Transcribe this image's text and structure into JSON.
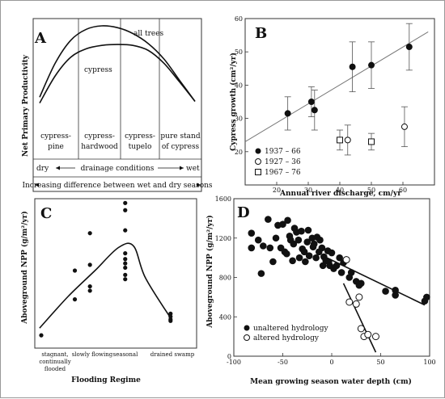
{
  "chart_data": [
    {
      "panel": "A",
      "type": "line",
      "ylabel": "Net Primary Productivity",
      "curves": [
        {
          "name": "all trees",
          "x": [
            0,
            1,
            2,
            3,
            4,
            5,
            6,
            7,
            8,
            9,
            10
          ],
          "y": [
            0.15,
            0.55,
            0.82,
            0.95,
            0.99,
            0.97,
            0.9,
            0.78,
            0.6,
            0.35,
            0.1
          ]
        },
        {
          "name": "cypress",
          "x": [
            0,
            1,
            2,
            3,
            4,
            5,
            6,
            7,
            8,
            9,
            10
          ],
          "y": [
            0.08,
            0.4,
            0.62,
            0.72,
            0.76,
            0.77,
            0.76,
            0.7,
            0.55,
            0.33,
            0.1
          ]
        }
      ],
      "zones": [
        {
          "line1": "cypress-",
          "line2": "pine"
        },
        {
          "line1": "cypress-",
          "line2": "hardwood"
        },
        {
          "line1": "cypress-",
          "line2": "tupelo"
        },
        {
          "line1": "pure stand",
          "line2": "of cypress"
        }
      ],
      "drainage": {
        "left": "dry",
        "mid": "drainage conditions",
        "right": "wet"
      },
      "difference_label": "Increasing difference between wet and dry seasons"
    },
    {
      "panel": "B",
      "type": "scatter",
      "xlabel": "Annual river discharge, cm/yr",
      "ylabel": "Cypress growth (cm²/yr)",
      "xlim": [
        10,
        70
      ],
      "ylim": [
        10,
        60
      ],
      "xticks": [
        20,
        30,
        40,
        50,
        60
      ],
      "yticks": [
        20,
        30,
        40,
        50,
        60
      ],
      "series": [
        {
          "name": "1937 – 66",
          "marker": "filled-circle",
          "x": [
            23.5,
            31,
            32,
            44,
            50,
            62
          ],
          "y": [
            31.5,
            35,
            32.5,
            45.5,
            46,
            51.5
          ],
          "err": [
            5,
            4.5,
            6,
            7.5,
            7,
            7
          ]
        },
        {
          "name": "1927 – 36",
          "marker": "open-circle",
          "x": [
            42.5,
            60.5
          ],
          "y": [
            23.5,
            27.5
          ],
          "err": [
            4.5,
            6
          ]
        },
        {
          "name": "1967 – 76",
          "marker": "open-square",
          "x": [
            40,
            50
          ],
          "y": [
            23.5,
            23
          ],
          "err": [
            3,
            2.5
          ]
        }
      ],
      "trend": {
        "x": [
          10,
          68
        ],
        "y": [
          23,
          56
        ]
      }
    },
    {
      "panel": "C",
      "type": "scatter",
      "xlabel": "Flooding Regime",
      "ylabel": "Aboveground NPP (g/m²/yr)",
      "categories": [
        "stagnant, continually flooded",
        "slowly flowing",
        "seasonal",
        "drained swamp"
      ],
      "category_lines": [
        [
          "stagnant,",
          "continually",
          "flooded"
        ],
        [
          "slowly flowing"
        ],
        [
          "seasonal"
        ],
        [
          "drained swamp"
        ]
      ],
      "points": [
        {
          "x": 0.0,
          "y": 0.05
        },
        {
          "x": 1.0,
          "y": 0.3
        },
        {
          "x": 1.0,
          "y": 0.5
        },
        {
          "x": 1.45,
          "y": 0.36
        },
        {
          "x": 1.45,
          "y": 0.39
        },
        {
          "x": 1.45,
          "y": 0.54
        },
        {
          "x": 1.45,
          "y": 0.76
        },
        {
          "x": 2.5,
          "y": 0.97
        },
        {
          "x": 2.5,
          "y": 0.92
        },
        {
          "x": 2.5,
          "y": 0.78
        },
        {
          "x": 2.5,
          "y": 0.62
        },
        {
          "x": 2.5,
          "y": 0.58
        },
        {
          "x": 2.5,
          "y": 0.55
        },
        {
          "x": 2.5,
          "y": 0.52
        },
        {
          "x": 2.5,
          "y": 0.47
        },
        {
          "x": 2.5,
          "y": 0.44
        },
        {
          "x": 3.85,
          "y": 0.2
        },
        {
          "x": 3.85,
          "y": 0.18
        },
        {
          "x": 3.85,
          "y": 0.16
        },
        {
          "x": 3.85,
          "y": 0.15
        }
      ],
      "fit": {
        "x": [
          -0.05,
          0.8,
          1.6,
          2.3,
          2.75,
          3.1,
          3.85
        ],
        "y": [
          0.1,
          0.32,
          0.5,
          0.66,
          0.67,
          0.45,
          0.17
        ]
      }
    },
    {
      "panel": "D",
      "type": "scatter",
      "xlabel": "Mean growing season water depth (cm)",
      "ylabel": "Aboveground NPP (g/m²/yr)",
      "xlim": [
        -100,
        100
      ],
      "ylim": [
        0,
        1600
      ],
      "xticks": [
        -100,
        -50,
        0,
        50,
        100
      ],
      "yticks": [
        0,
        400,
        800,
        1200,
        1600
      ],
      "legend": [
        {
          "name": "unaltered hydrology",
          "marker": "filled-circle"
        },
        {
          "name": "altered hydrology",
          "marker": "open-circle"
        }
      ],
      "series": [
        {
          "name": "unaltered hydrology",
          "x": [
            -82,
            -82,
            -75,
            -72,
            -70,
            -65,
            -63,
            -60,
            -57,
            -55,
            -52,
            -50,
            -48,
            -46,
            -45,
            -43,
            -42,
            -40,
            -39,
            -38,
            -36,
            -34,
            -33,
            -31,
            -30,
            -28,
            -27,
            -25,
            -24,
            -23,
            -20,
            -19,
            -18,
            -16,
            -15,
            -13,
            -12,
            -10,
            -9,
            -8,
            -6,
            -4,
            -3,
            -2,
            0,
            2,
            5,
            8,
            10,
            12,
            15,
            18,
            20,
            25,
            28,
            30,
            55,
            65,
            65,
            95,
            97
          ],
          "y": [
            1250,
            1100,
            1180,
            840,
            1120,
            1390,
            1100,
            960,
            1200,
            1330,
            1100,
            1340,
            1060,
            1040,
            1380,
            1220,
            1180,
            970,
            1140,
            1300,
            1260,
            1180,
            1000,
            1270,
            1090,
            1060,
            960,
            1160,
            1280,
            1020,
            1200,
            1110,
            1140,
            1000,
            1210,
            1060,
            1180,
            1100,
            920,
            1010,
            970,
            1070,
            960,
            920,
            1050,
            890,
            920,
            1000,
            850,
            950,
            980,
            800,
            850,
            760,
            720,
            740,
            660,
            670,
            620,
            560,
            600
          ]
        },
        {
          "name": "altered hydrology",
          "x": [
            15,
            18,
            25,
            28,
            30,
            33,
            37,
            45
          ],
          "y": [
            980,
            550,
            530,
            600,
            280,
            200,
            220,
            200
          ]
        }
      ],
      "fits": [
        {
          "name": "unaltered hydrology",
          "x": [
            -5,
            95
          ],
          "y": [
            1000,
            520
          ]
        },
        {
          "name": "altered hydrology",
          "x": [
            12,
            45
          ],
          "y": [
            740,
            40
          ]
        }
      ]
    }
  ]
}
